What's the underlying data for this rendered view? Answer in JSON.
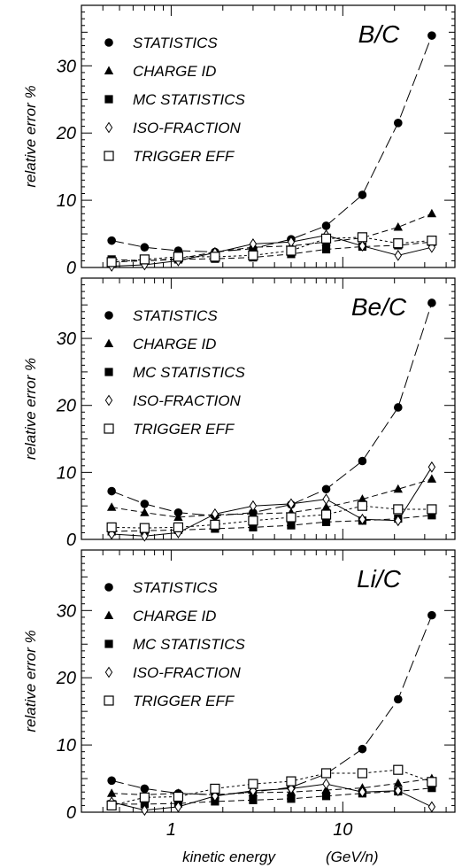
{
  "x_axis": {
    "label_text": "kinetic energy",
    "label_unit": "(GeV/n)",
    "scale": "log",
    "range": [
      0.3,
      45
    ],
    "tick_labels": [
      {
        "value": 1,
        "text": "1"
      },
      {
        "value": 10,
        "text": "10"
      }
    ]
  },
  "legend_labels": [
    "STATISTICS",
    "CHARGE ID",
    "MC STATISTICS",
    "ISO-FRACTION",
    "TRIGGER EFF"
  ],
  "chart_data": [
    {
      "type": "line",
      "title": "B/C",
      "ylabel": "relative error %",
      "ylim": [
        0,
        39
      ],
      "ytick_values": [
        0,
        10,
        20,
        30
      ],
      "ytick_labels": [
        "0",
        "10",
        "20",
        "30"
      ],
      "x_scale": "log",
      "xlim": [
        0.3,
        45
      ],
      "grid": false,
      "legend_position": "top-left",
      "x": [
        0.45,
        0.7,
        1.1,
        1.8,
        3.0,
        5.0,
        8.0,
        13.0,
        21.0,
        33.0
      ],
      "series": [
        {
          "name": "STATISTICS",
          "marker": "filled-circle",
          "dash": "long",
          "values": [
            4.0,
            3.0,
            2.5,
            2.3,
            2.8,
            4.2,
            6.2,
            10.8,
            21.5,
            34.5
          ]
        },
        {
          "name": "CHARGE ID",
          "marker": "filled-triangle",
          "dash": "medium",
          "values": [
            0.8,
            1.0,
            1.3,
            2.3,
            3.0,
            3.2,
            3.8,
            4.4,
            6.0,
            8.0
          ]
        },
        {
          "name": "MC STATISTICS",
          "marker": "filled-square",
          "dash": "medium",
          "values": [
            1.2,
            1.0,
            1.2,
            1.3,
            1.5,
            2.0,
            2.7,
            3.1,
            3.3,
            3.8
          ]
        },
        {
          "name": "ISO-FRACTION",
          "marker": "open-diamond",
          "dash": "solid",
          "values": [
            0.2,
            0.4,
            1.0,
            2.2,
            3.5,
            3.8,
            4.8,
            3.2,
            1.8,
            3.0
          ]
        },
        {
          "name": "TRIGGER EFF",
          "marker": "open-square",
          "dash": "short",
          "values": [
            0.8,
            1.2,
            1.6,
            1.6,
            1.8,
            2.5,
            4.3,
            4.5,
            3.6,
            4.0
          ]
        }
      ]
    },
    {
      "type": "line",
      "title": "Be/C",
      "ylabel": "relative error %",
      "ylim": [
        0,
        39
      ],
      "ytick_values": [
        0,
        10,
        20,
        30
      ],
      "ytick_labels": [
        "0",
        "10",
        "20",
        "30"
      ],
      "x_scale": "log",
      "xlim": [
        0.3,
        45
      ],
      "grid": false,
      "legend_position": "top-left",
      "x": [
        0.45,
        0.7,
        1.1,
        1.8,
        3.0,
        5.0,
        8.0,
        13.0,
        21.0,
        33.0
      ],
      "series": [
        {
          "name": "STATISTICS",
          "marker": "filled-circle",
          "dash": "long",
          "values": [
            7.2,
            5.3,
            4.0,
            3.5,
            4.0,
            5.2,
            7.5,
            11.7,
            19.7,
            35.3
          ]
        },
        {
          "name": "CHARGE ID",
          "marker": "filled-triangle",
          "dash": "medium",
          "values": [
            4.8,
            4.0,
            3.3,
            3.7,
            3.8,
            4.0,
            4.8,
            6.0,
            7.5,
            9.0
          ]
        },
        {
          "name": "MC STATISTICS",
          "marker": "filled-square",
          "dash": "medium",
          "values": [
            1.2,
            1.3,
            1.4,
            1.6,
            1.8,
            2.1,
            2.6,
            2.8,
            3.1,
            3.6
          ]
        },
        {
          "name": "ISO-FRACTION",
          "marker": "open-diamond",
          "dash": "solid",
          "values": [
            0.8,
            0.5,
            1.0,
            3.8,
            5.0,
            5.3,
            6.0,
            3.0,
            2.8,
            10.8
          ]
        },
        {
          "name": "TRIGGER EFF",
          "marker": "open-square",
          "dash": "short",
          "values": [
            1.8,
            1.7,
            1.8,
            2.2,
            2.8,
            3.3,
            3.7,
            5.0,
            4.5,
            4.5
          ]
        }
      ]
    },
    {
      "type": "line",
      "title": "Li/C",
      "ylabel": "relative error %",
      "ylim": [
        0,
        39
      ],
      "ytick_values": [
        0,
        10,
        20,
        30
      ],
      "ytick_labels": [
        "0",
        "10",
        "20",
        "30"
      ],
      "x_scale": "log",
      "xlim": [
        0.3,
        45
      ],
      "grid": false,
      "legend_position": "top-left",
      "x": [
        0.45,
        0.7,
        1.1,
        1.8,
        3.0,
        5.0,
        8.0,
        13.0,
        21.0,
        33.0
      ],
      "series": [
        {
          "name": "STATISTICS",
          "marker": "filled-circle",
          "dash": "long",
          "values": [
            4.7,
            3.5,
            2.8,
            2.6,
            3.0,
            3.7,
            5.7,
            9.4,
            16.8,
            29.3
          ]
        },
        {
          "name": "CHARGE ID",
          "marker": "filled-triangle",
          "dash": "medium",
          "values": [
            2.8,
            2.6,
            2.8,
            2.6,
            2.9,
            3.0,
            3.3,
            3.6,
            4.3,
            5.0
          ]
        },
        {
          "name": "MC STATISTICS",
          "marker": "filled-square",
          "dash": "medium",
          "values": [
            1.2,
            1.2,
            1.3,
            1.6,
            1.8,
            2.0,
            2.4,
            2.8,
            3.1,
            3.6
          ]
        },
        {
          "name": "ISO-FRACTION",
          "marker": "open-diamond",
          "dash": "solid",
          "values": [
            1.5,
            0.3,
            0.8,
            2.4,
            3.2,
            3.5,
            4.2,
            3.0,
            3.2,
            0.8
          ]
        },
        {
          "name": "TRIGGER EFF",
          "marker": "open-square",
          "dash": "short",
          "values": [
            1.0,
            2.2,
            2.3,
            3.5,
            4.2,
            4.6,
            5.8,
            5.8,
            6.3,
            4.5
          ]
        }
      ]
    }
  ]
}
